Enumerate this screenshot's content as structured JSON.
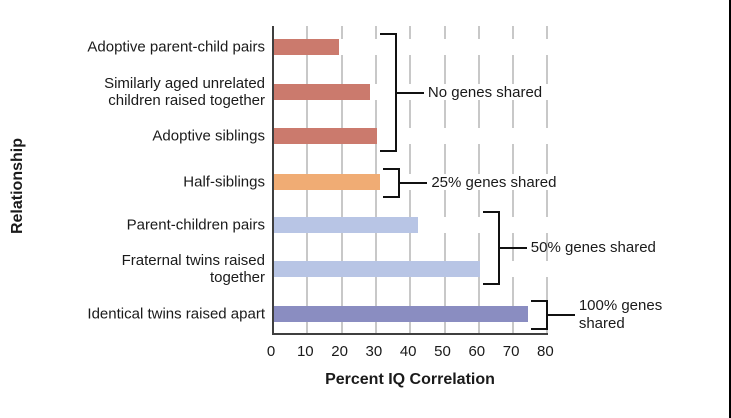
{
  "chart_data": {
    "type": "bar",
    "orientation": "horizontal",
    "title": "",
    "xlabel": "Percent IQ Correlation",
    "ylabel": "Relationship",
    "xlim": [
      0,
      80
    ],
    "xticks": [
      0,
      10,
      20,
      30,
      40,
      50,
      60,
      70,
      80
    ],
    "grid": "vertical",
    "legend": "none",
    "categories": [
      "Adoptive parent-child pairs",
      "Similarly aged unrelated\nchildren raised together",
      "Adoptive siblings",
      "Half-siblings",
      "Parent-children pairs",
      "Fraternal twins raised\ntogether",
      "Identical twins raised apart"
    ],
    "values": [
      19,
      28,
      30,
      31,
      42,
      60,
      74
    ],
    "bar_colors": [
      "#CB7A6D",
      "#CB7A6D",
      "#CB7A6D",
      "#F0AC74",
      "#B8C5E5",
      "#B8C5E5",
      "#8A8DC1"
    ],
    "annotations": [
      {
        "label": "No genes shared",
        "bars": [
          0,
          2
        ]
      },
      {
        "label": "25% genes shared",
        "bars": [
          3,
          3
        ]
      },
      {
        "label": "50% genes shared",
        "bars": [
          4,
          5
        ]
      },
      {
        "label": "100% genes\nshared",
        "bars": [
          6,
          6
        ]
      }
    ]
  },
  "colors": {
    "axis": "#3f3f3f",
    "gridline": "#c8c8c8",
    "bracket": "#111111",
    "text": "#1a1a1a",
    "page_border": "#000000"
  }
}
